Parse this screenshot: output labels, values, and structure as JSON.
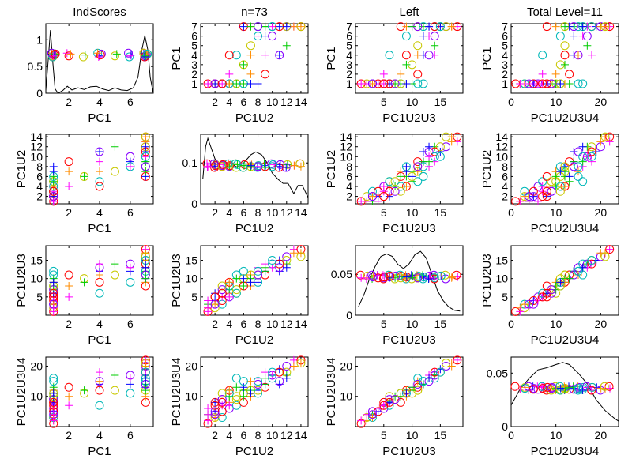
{
  "chart_data": {
    "type": "scatter",
    "layout": "scatter-matrix 4x4",
    "n": 73,
    "column_titles": [
      "IndScores",
      "n=73",
      "Left",
      "Total Level=11"
    ],
    "variables": [
      "PC1",
      "PC1U2",
      "PC1U2U3",
      "PC1U2U3U4"
    ],
    "axes": [
      {
        "label": "PC1",
        "range": [
          0.5,
          7.5
        ],
        "ticks": [
          2,
          4,
          6
        ]
      },
      {
        "label": "PC1U2",
        "range": [
          0,
          15
        ],
        "ticks": [
          2,
          4,
          6,
          8,
          10,
          12,
          14
        ]
      },
      {
        "label": "PC1U2U3",
        "range": [
          0,
          19
        ],
        "ticks": [
          5,
          10,
          15
        ]
      },
      {
        "label": "PC1U2U3U4",
        "range": [
          0,
          24
        ],
        "ticks": [
          0,
          10,
          20
        ]
      }
    ],
    "y_axes": [
      {
        "label": "PC1",
        "range": [
          0,
          7.3
        ],
        "ticks": [
          1,
          2,
          3,
          4,
          5,
          6,
          7
        ]
      },
      {
        "label": "PC1U2",
        "range": [
          0.5,
          14.5
        ],
        "ticks": [
          2,
          4,
          6,
          8,
          10,
          12,
          14
        ]
      },
      {
        "label": "PC1U2U3",
        "range": [
          0,
          19
        ],
        "ticks": [
          5,
          10,
          15
        ]
      },
      {
        "label": "PC1U2U3U4",
        "range": [
          0,
          23
        ],
        "ticks": [
          10,
          20
        ]
      }
    ],
    "diag_axes": [
      {
        "range": [
          0,
          1.3
        ],
        "ticks": [
          0,
          0.5,
          1
        ],
        "tick_labels": [
          "0",
          "0.5",
          "1"
        ]
      },
      {
        "range": [
          0,
          0.17
        ],
        "ticks": [
          0,
          0.1
        ],
        "tick_labels": [
          "0",
          "0.1"
        ]
      },
      {
        "range": [
          0,
          0.085
        ],
        "ticks": [
          0,
          0.05
        ],
        "tick_labels": [
          "0",
          "0.05"
        ]
      },
      {
        "range": [
          0,
          0.065
        ],
        "ticks": [
          0,
          0.05
        ],
        "tick_labels": [
          "0",
          "0.05"
        ]
      }
    ],
    "colors": [
      "#ff0000",
      "#ff8c00",
      "#c8c800",
      "#00cc00",
      "#00b8b8",
      "#0000ff",
      "#8800ff",
      "#ff00ff"
    ],
    "observations": [
      [
        1,
        1,
        1,
        1
      ],
      [
        1,
        1,
        2,
        2
      ],
      [
        1,
        2,
        2,
        3
      ],
      [
        1,
        1,
        3,
        4
      ],
      [
        1,
        3,
        3,
        3
      ],
      [
        1,
        2,
        4,
        5
      ],
      [
        1,
        4,
        5,
        6
      ],
      [
        1,
        3,
        5,
        7
      ],
      [
        1,
        2,
        5,
        8
      ],
      [
        1,
        4,
        6,
        8
      ],
      [
        1,
        5,
        6,
        10
      ],
      [
        1,
        4,
        7,
        10
      ],
      [
        1,
        5,
        11,
        16
      ],
      [
        1,
        8,
        9,
        12
      ],
      [
        1,
        3,
        6,
        9
      ],
      [
        2,
        4,
        5,
        7
      ],
      [
        2,
        9,
        11,
        13
      ],
      [
        2,
        7,
        8,
        10
      ],
      [
        3,
        6,
        10,
        11
      ],
      [
        3,
        6,
        9,
        12
      ],
      [
        4,
        5,
        6,
        7
      ],
      [
        4,
        11,
        12,
        14
      ],
      [
        4,
        11,
        13,
        15
      ],
      [
        4,
        9,
        14,
        18
      ],
      [
        4,
        4,
        9,
        12
      ],
      [
        4,
        7,
        11,
        15
      ],
      [
        5,
        7,
        11,
        12
      ],
      [
        5,
        12,
        14,
        17
      ],
      [
        6,
        8,
        9,
        11
      ],
      [
        6,
        9,
        12,
        14
      ],
      [
        6,
        10,
        14,
        17
      ],
      [
        6,
        8,
        13,
        16
      ],
      [
        7,
        6,
        8,
        8
      ],
      [
        7,
        7,
        9,
        10
      ],
      [
        7,
        8,
        11,
        12
      ],
      [
        7,
        9,
        12,
        14
      ],
      [
        7,
        10,
        14,
        16
      ],
      [
        7,
        11,
        15,
        19
      ],
      [
        7,
        12,
        16,
        20
      ],
      [
        7,
        13,
        18,
        22
      ],
      [
        7,
        14,
        18,
        22
      ],
      [
        7,
        14,
        17,
        21
      ],
      [
        7,
        12,
        15,
        18
      ],
      [
        7,
        9,
        13,
        16
      ],
      [
        7,
        8,
        12,
        15
      ],
      [
        7,
        6,
        10,
        13
      ],
      [
        7,
        8,
        11,
        14
      ],
      [
        7,
        10,
        13,
        17
      ],
      [
        7,
        11,
        14,
        18
      ],
      [
        7,
        13,
        17,
        20
      ],
      [
        7,
        14,
        16,
        21
      ],
      [
        7,
        7,
        10,
        12
      ],
      [
        7,
        10,
        15,
        18
      ],
      [
        7,
        12,
        13,
        16
      ],
      [
        1,
        2,
        3,
        5
      ],
      [
        1,
        1,
        4,
        6
      ],
      [
        1,
        3,
        4,
        5
      ],
      [
        1,
        2,
        3,
        3
      ],
      [
        1,
        5,
        7,
        9
      ],
      [
        1,
        6,
        8,
        10
      ],
      [
        1,
        4,
        8,
        11
      ],
      [
        1,
        2,
        6,
        8
      ],
      [
        1,
        3,
        7,
        9
      ],
      [
        1,
        1,
        2,
        4
      ],
      [
        1,
        2,
        5,
        7
      ],
      [
        1,
        4,
        9,
        12
      ],
      [
        1,
        3,
        8,
        11
      ],
      [
        1,
        5,
        10,
        13
      ],
      [
        1,
        6,
        12,
        15
      ],
      [
        1,
        7,
        9,
        11
      ],
      [
        1,
        2,
        3,
        4
      ],
      [
        1,
        1,
        1,
        2
      ],
      [
        1,
        3,
        6,
        8
      ]
    ],
    "density": [
      [
        [
          0.5,
          0.05
        ],
        [
          0.65,
          0.6
        ],
        [
          0.8,
          1.18
        ],
        [
          0.95,
          0.6
        ],
        [
          1.1,
          0.08
        ],
        [
          1.3,
          0.0
        ],
        [
          1.6,
          0.05
        ],
        [
          1.9,
          0.13
        ],
        [
          2.2,
          0.06
        ],
        [
          2.6,
          0.1
        ],
        [
          3.0,
          0.07
        ],
        [
          3.4,
          0.12
        ],
        [
          3.8,
          0.13
        ],
        [
          4.2,
          0.08
        ],
        [
          4.6,
          0.05
        ],
        [
          5.0,
          0.1
        ],
        [
          5.4,
          0.06
        ],
        [
          5.8,
          0.05
        ],
        [
          6.2,
          0.1
        ],
        [
          6.5,
          0.3
        ],
        [
          6.75,
          0.8
        ],
        [
          6.95,
          1.08
        ],
        [
          7.15,
          0.8
        ],
        [
          7.3,
          0.3
        ],
        [
          7.5,
          0.0
        ]
      ],
      [
        [
          0.3,
          0.06
        ],
        [
          0.7,
          0.14
        ],
        [
          1.0,
          0.16
        ],
        [
          1.4,
          0.14
        ],
        [
          2.0,
          0.11
        ],
        [
          2.8,
          0.09
        ],
        [
          3.6,
          0.09
        ],
        [
          4.2,
          0.1
        ],
        [
          5.0,
          0.09
        ],
        [
          6.0,
          0.1
        ],
        [
          7.0,
          0.12
        ],
        [
          7.7,
          0.127
        ],
        [
          8.5,
          0.12
        ],
        [
          9.3,
          0.1
        ],
        [
          10.0,
          0.075
        ],
        [
          10.8,
          0.06
        ],
        [
          11.5,
          0.05
        ],
        [
          12.2,
          0.05
        ],
        [
          13.0,
          0.025
        ],
        [
          13.6,
          0.045
        ],
        [
          14.2,
          0.045
        ],
        [
          15.0,
          0.015
        ]
      ],
      [
        [
          0.5,
          0.01
        ],
        [
          1.5,
          0.025
        ],
        [
          2.5,
          0.045
        ],
        [
          3.5,
          0.06
        ],
        [
          4.5,
          0.072
        ],
        [
          5.5,
          0.075
        ],
        [
          6.5,
          0.072
        ],
        [
          7.5,
          0.062
        ],
        [
          8.5,
          0.057
        ],
        [
          9.5,
          0.063
        ],
        [
          10.5,
          0.074
        ],
        [
          11.5,
          0.078
        ],
        [
          12.5,
          0.07
        ],
        [
          13.5,
          0.05
        ],
        [
          14.5,
          0.03
        ],
        [
          15.5,
          0.018
        ],
        [
          16.5,
          0.01
        ],
        [
          17.5,
          0.006
        ],
        [
          18.5,
          0.005
        ]
      ],
      [
        [
          0,
          0.02
        ],
        [
          2,
          0.035
        ],
        [
          4,
          0.045
        ],
        [
          6,
          0.053
        ],
        [
          8,
          0.055
        ],
        [
          10,
          0.058
        ],
        [
          11.5,
          0.06
        ],
        [
          13,
          0.058
        ],
        [
          15,
          0.05
        ],
        [
          17,
          0.04
        ],
        [
          19,
          0.025
        ],
        [
          21,
          0.015
        ],
        [
          23,
          0.008
        ],
        [
          24,
          0.005
        ]
      ]
    ]
  }
}
